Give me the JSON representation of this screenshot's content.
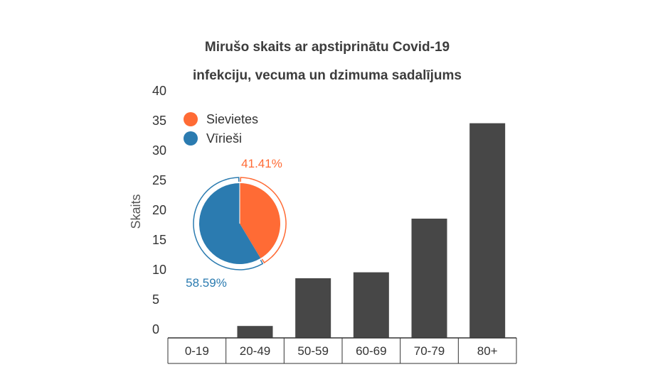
{
  "chart_data": {
    "type": "bar",
    "title": "Mirušo skaits ar apstiprinātu Covid-19 infekciju, vecuma un dzimuma sadalījums",
    "title_lines": [
      "Mirušo skaits ar apstiprinātu Covid-19",
      "infekciju, vecuma un dzimuma sadalījums"
    ],
    "ylabel": "Skaits",
    "xlabel": "",
    "ylim": [
      0,
      40
    ],
    "yticks": [
      "0",
      "5",
      "10",
      "15",
      "20",
      "25",
      "30",
      "35",
      "40"
    ],
    "grid": false,
    "categories": [
      "0-19",
      "20-49",
      "50-59",
      "60-69",
      "70-79",
      "80+"
    ],
    "values": [
      0,
      2,
      10,
      11,
      20,
      36
    ],
    "bar_color": "#474747",
    "inset_pie": {
      "type": "pie",
      "legend_position": "top-left",
      "slices": [
        {
          "name": "Sievietes",
          "value": 41.41,
          "label": "41.41%",
          "color": "#ff6b35"
        },
        {
          "name": "Vīrieši",
          "value": 58.59,
          "label": "58.59%",
          "color": "#2b7bb0"
        }
      ]
    }
  }
}
